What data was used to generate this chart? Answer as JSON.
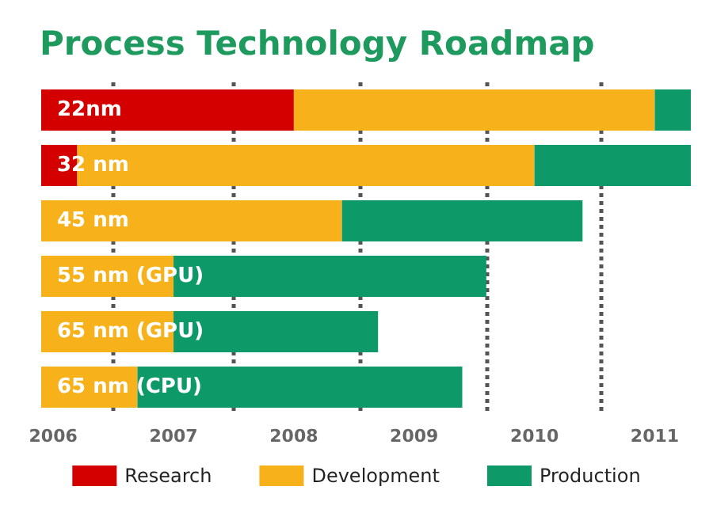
{
  "chart_data": {
    "type": "bar",
    "orientation": "horizontal",
    "title": "Process Technology Roadmap",
    "categories": [
      "22nm",
      "32 nm",
      "45 nm",
      "55 nm (GPU)",
      "65 nm (GPU)",
      "65 nm (CPU)"
    ],
    "series": [
      {
        "name": "Research",
        "color": "#d40000",
        "base": [
          2005.9,
          2005.9,
          null,
          null,
          null,
          null
        ],
        "values": [
          2.1,
          0.3,
          null,
          null,
          null,
          null
        ]
      },
      {
        "name": "Development",
        "color": "#f7b21b",
        "base": [
          2008.0,
          2006.2,
          2005.9,
          2005.9,
          2005.9,
          2005.9
        ],
        "values": [
          3.0,
          3.8,
          2.5,
          1.1,
          1.1,
          0.8
        ]
      },
      {
        "name": "Production",
        "color": "#0e9a68",
        "base": [
          2011.0,
          2010.0,
          2008.4,
          2007.0,
          2007.0,
          2006.7
        ],
        "values": [
          0.3,
          1.3,
          2.0,
          2.6,
          1.7,
          2.7
        ]
      }
    ],
    "xlim": [
      2005.9,
      2011.3
    ],
    "xticks": [
      2006,
      2007,
      2008,
      2009,
      2010,
      2011
    ],
    "ref_lines": [
      {
        "axis": "x",
        "value": 2006.5,
        "line_style": "dotted",
        "color": "#555555"
      },
      {
        "axis": "x",
        "value": 2007.5,
        "line_style": "dotted",
        "color": "#555555"
      },
      {
        "axis": "x",
        "value": 2008.55,
        "line_style": "dotted",
        "color": "#555555"
      },
      {
        "axis": "x",
        "value": 2009.6,
        "line_style": "dotted",
        "color": "#555555"
      },
      {
        "axis": "x",
        "value": 2010.55,
        "line_style": "dotted",
        "color": "#555555"
      }
    ],
    "grid": false,
    "legend": "bottom"
  }
}
